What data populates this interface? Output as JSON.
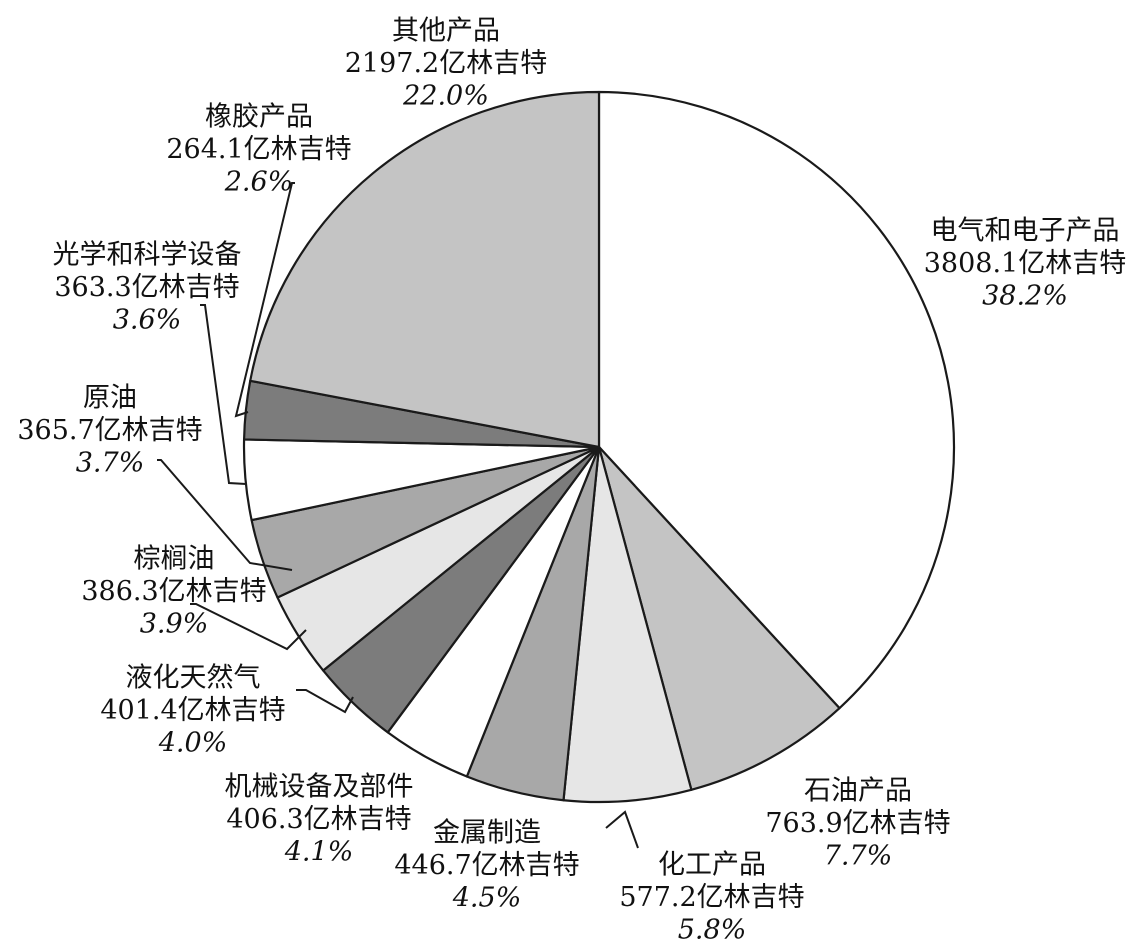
{
  "chart_data": {
    "type": "pie",
    "title": "",
    "unit": "亿林吉特",
    "slices": [
      {
        "name": "电气和电子产品",
        "value_label": "3808.1亿林吉特",
        "value": 3808.1,
        "pct_label": "38.2%",
        "pct": 38.2,
        "color": "#ffffff"
      },
      {
        "name": "石油产品",
        "value_label": "763.9亿林吉特",
        "value": 763.9,
        "pct_label": "7.7%",
        "pct": 7.7,
        "color": "#c4c4c4"
      },
      {
        "name": "化工产品",
        "value_label": "577.2亿林吉特",
        "value": 577.2,
        "pct_label": "5.8%",
        "pct": 5.8,
        "color": "#e6e6e6"
      },
      {
        "name": "金属制造",
        "value_label": "446.7亿林吉特",
        "value": 446.7,
        "pct_label": "4.5%",
        "pct": 4.5,
        "color": "#a8a8a8"
      },
      {
        "name": "机械设备及部件",
        "value_label": "406.3亿林吉特",
        "value": 406.3,
        "pct_label": "4.1%",
        "pct": 4.1,
        "color": "#ffffff"
      },
      {
        "name": "液化天然气",
        "value_label": "401.4亿林吉特",
        "value": 401.4,
        "pct_label": "4.0%",
        "pct": 4.0,
        "color": "#7c7c7c"
      },
      {
        "name": "棕榈油",
        "value_label": "386.3亿林吉特",
        "value": 386.3,
        "pct_label": "3.9%",
        "pct": 3.9,
        "color": "#e6e6e6"
      },
      {
        "name": "原油",
        "value_label": "365.7亿林吉特",
        "value": 365.7,
        "pct_label": "3.7%",
        "pct": 3.7,
        "color": "#a8a8a8"
      },
      {
        "name": "光学和科学设备",
        "value_label": "363.3亿林吉特",
        "value": 363.3,
        "pct_label": "3.6%",
        "pct": 3.6,
        "color": "#ffffff"
      },
      {
        "name": "橡胶产品",
        "value_label": "264.1亿林吉特",
        "value": 264.1,
        "pct_label": "2.6%",
        "pct": 2.6,
        "color": "#7c7c7c"
      },
      {
        "name": "其他产品",
        "value_label": "2197.2亿林吉特",
        "value": 2197.2,
        "pct_label": "22.0%",
        "pct": 22.0,
        "color": "#c4c4c4"
      }
    ]
  }
}
